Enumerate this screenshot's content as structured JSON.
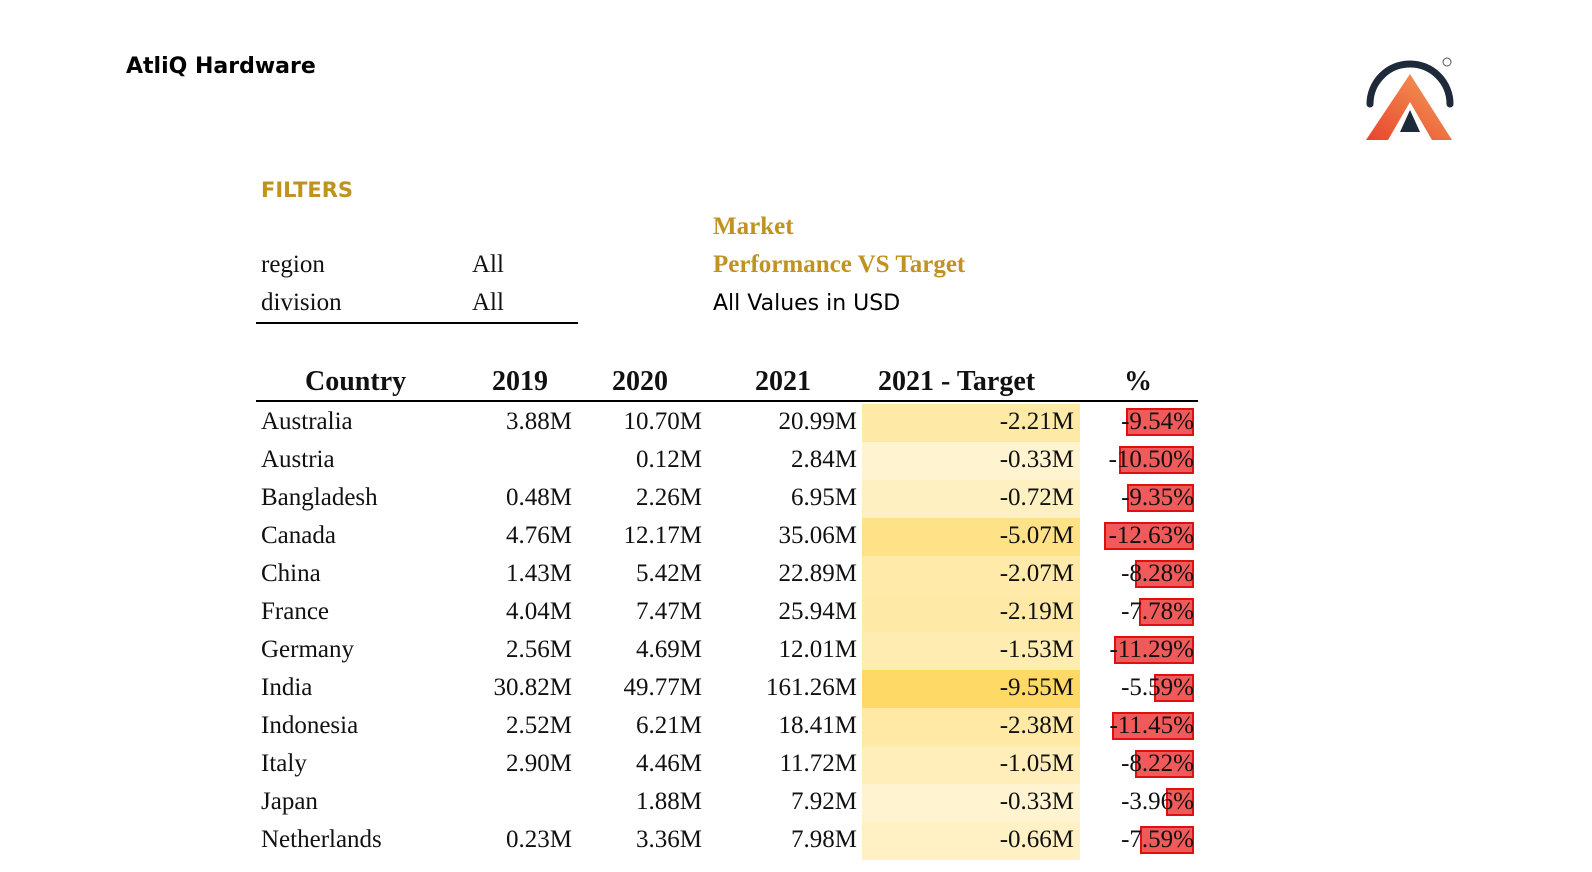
{
  "header": {
    "company": "AtliQ Hardware",
    "logo_icon": "atliq-logo-icon"
  },
  "filters": {
    "title": "FILTERS",
    "items": [
      {
        "label": "region",
        "value": "All"
      },
      {
        "label": "division",
        "value": "All"
      }
    ]
  },
  "report": {
    "title_line1": "Market",
    "title_line2": "Performance VS Target",
    "units": "All Values in USD"
  },
  "table": {
    "headers": {
      "country": "Country",
      "y2019": "2019",
      "y2020": "2020",
      "y2021": "2021",
      "target": "2021 -  Target",
      "pct": "%"
    },
    "rows": [
      {
        "country": "Australia",
        "y2019": "3.88M",
        "y2020": "10.70M",
        "y2021": "20.99M",
        "target": "-2.21M",
        "pct": "-9.54%",
        "target_value": -2.21,
        "pct_value": -9.54
      },
      {
        "country": "Austria",
        "y2019": "",
        "y2020": "0.12M",
        "y2021": "2.84M",
        "target": "-0.33M",
        "pct": "-10.50%",
        "target_value": -0.33,
        "pct_value": -10.5
      },
      {
        "country": "Bangladesh",
        "y2019": "0.48M",
        "y2020": "2.26M",
        "y2021": "6.95M",
        "target": "-0.72M",
        "pct": "-9.35%",
        "target_value": -0.72,
        "pct_value": -9.35
      },
      {
        "country": "Canada",
        "y2019": "4.76M",
        "y2020": "12.17M",
        "y2021": "35.06M",
        "target": "-5.07M",
        "pct": "-12.63%",
        "target_value": -5.07,
        "pct_value": -12.63
      },
      {
        "country": "China",
        "y2019": "1.43M",
        "y2020": "5.42M",
        "y2021": "22.89M",
        "target": "-2.07M",
        "pct": "-8.28%",
        "target_value": -2.07,
        "pct_value": -8.28
      },
      {
        "country": "France",
        "y2019": "4.04M",
        "y2020": "7.47M",
        "y2021": "25.94M",
        "target": "-2.19M",
        "pct": "-7.78%",
        "target_value": -2.19,
        "pct_value": -7.78
      },
      {
        "country": "Germany",
        "y2019": "2.56M",
        "y2020": "4.69M",
        "y2021": "12.01M",
        "target": "-1.53M",
        "pct": "-11.29%",
        "target_value": -1.53,
        "pct_value": -11.29
      },
      {
        "country": "India",
        "y2019": "30.82M",
        "y2020": "49.77M",
        "y2021": "161.26M",
        "target": "-9.55M",
        "pct": "-5.59%",
        "target_value": -9.55,
        "pct_value": -5.59
      },
      {
        "country": "Indonesia",
        "y2019": "2.52M",
        "y2020": "6.21M",
        "y2021": "18.41M",
        "target": "-2.38M",
        "pct": "-11.45%",
        "target_value": -2.38,
        "pct_value": -11.45
      },
      {
        "country": "Italy",
        "y2019": "2.90M",
        "y2020": "4.46M",
        "y2021": "11.72M",
        "target": "-1.05M",
        "pct": "-8.22%",
        "target_value": -1.05,
        "pct_value": -8.22
      },
      {
        "country": "Japan",
        "y2019": "",
        "y2020": "1.88M",
        "y2021": "7.92M",
        "target": "-0.33M",
        "pct": "-3.96%",
        "target_value": -0.33,
        "pct_value": -3.96
      },
      {
        "country": "Netherlands",
        "y2019": "0.23M",
        "y2020": "3.36M",
        "y2021": "7.98M",
        "target": "-0.66M",
        "pct": "-7.59%",
        "target_value": -0.66,
        "pct_value": -7.59
      }
    ]
  },
  "colors": {
    "accent_gold": "#c09320",
    "bar_red": "#f05a5a",
    "bar_border": "#e01010",
    "heat_light": "#fffbec",
    "heat_dark": "#ffd966"
  }
}
